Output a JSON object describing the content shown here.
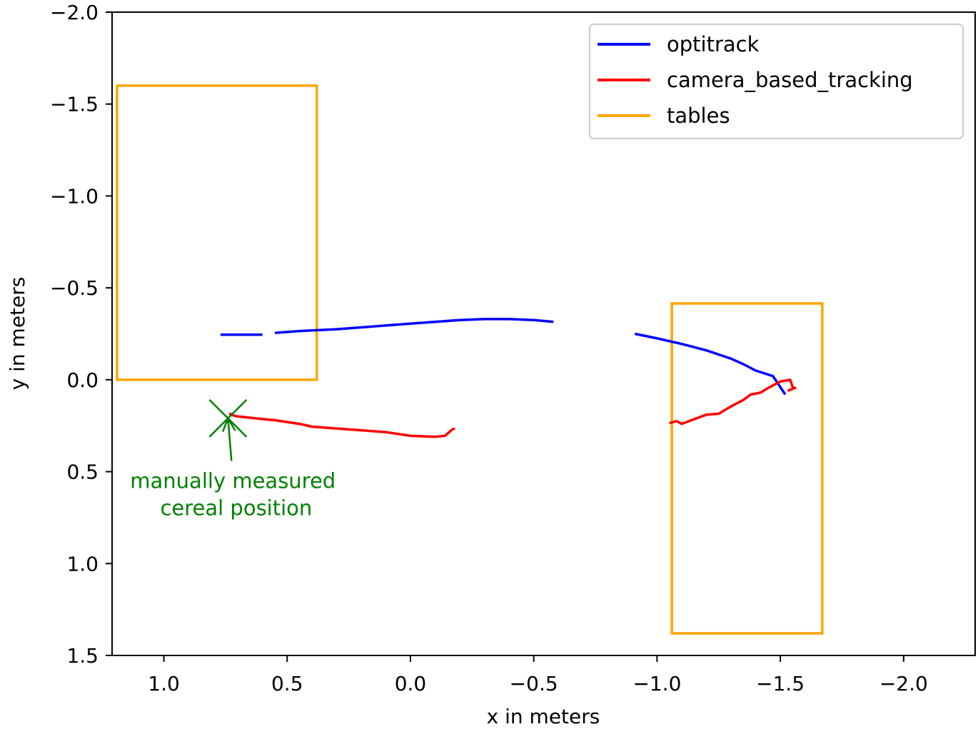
{
  "chart_data": {
    "type": "line",
    "title": "",
    "xlabel": "x in meters",
    "ylabel": "y in meters",
    "xlim": [
      1.21,
      -2.29
    ],
    "ylim": [
      1.5,
      -2.0
    ],
    "x_ticks": [
      {
        "value": 1.0,
        "label": "1.0"
      },
      {
        "value": 0.5,
        "label": "0.5"
      },
      {
        "value": 0.0,
        "label": "0.0"
      },
      {
        "value": -0.5,
        "label": "−0.5"
      },
      {
        "value": -1.0,
        "label": "−1.0"
      },
      {
        "value": -1.5,
        "label": "−1.5"
      },
      {
        "value": -2.0,
        "label": "−2.0"
      }
    ],
    "y_ticks": [
      {
        "value": -2.0,
        "label": "−2.0"
      },
      {
        "value": -1.5,
        "label": "−1.5"
      },
      {
        "value": -1.0,
        "label": "−1.0"
      },
      {
        "value": -0.5,
        "label": "−0.5"
      },
      {
        "value": 0.0,
        "label": "0.0"
      },
      {
        "value": 0.5,
        "label": "0.5"
      },
      {
        "value": 1.0,
        "label": "1.0"
      },
      {
        "value": 1.5,
        "label": "1.5"
      }
    ],
    "legend_position": "top-right",
    "series": [
      {
        "name": "optitrack",
        "color": "#0000ff",
        "segments": [
          [
            [
              0.77,
              -0.245
            ],
            [
              0.72,
              -0.245
            ],
            [
              0.6,
              -0.245
            ]
          ],
          [
            [
              0.55,
              -0.255
            ],
            [
              0.45,
              -0.265
            ],
            [
              0.3,
              -0.275
            ],
            [
              0.2,
              -0.285
            ],
            [
              0.1,
              -0.295
            ],
            [
              0.0,
              -0.305
            ],
            [
              -0.1,
              -0.315
            ],
            [
              -0.2,
              -0.325
            ],
            [
              -0.3,
              -0.33
            ],
            [
              -0.4,
              -0.33
            ],
            [
              -0.5,
              -0.325
            ],
            [
              -0.58,
              -0.315
            ]
          ],
          [
            [
              -0.91,
              -0.25
            ],
            [
              -1.0,
              -0.225
            ],
            [
              -1.1,
              -0.195
            ],
            [
              -1.2,
              -0.16
            ],
            [
              -1.3,
              -0.115
            ],
            [
              -1.35,
              -0.085
            ],
            [
              -1.4,
              -0.05
            ],
            [
              -1.47,
              -0.02
            ],
            [
              -1.52,
              0.08
            ]
          ]
        ]
      },
      {
        "name": "camera_based_tracking",
        "color": "#ff0000",
        "segments": [
          [
            [
              0.73,
              0.18
            ],
            [
              0.73,
              0.19
            ],
            [
              0.7,
              0.2
            ],
            [
              0.66,
              0.205
            ],
            [
              0.63,
              0.21
            ],
            [
              0.59,
              0.215
            ],
            [
              0.55,
              0.22
            ],
            [
              0.5,
              0.23
            ],
            [
              0.45,
              0.24
            ],
            [
              0.4,
              0.255
            ],
            [
              0.3,
              0.265
            ],
            [
              0.2,
              0.275
            ],
            [
              0.1,
              0.285
            ],
            [
              0.0,
              0.305
            ],
            [
              -0.1,
              0.31
            ],
            [
              -0.14,
              0.305
            ],
            [
              -0.17,
              0.27
            ],
            [
              -0.18,
              0.265
            ]
          ],
          [
            [
              -1.05,
              0.235
            ],
            [
              -1.08,
              0.225
            ],
            [
              -1.1,
              0.24
            ],
            [
              -1.15,
              0.215
            ],
            [
              -1.2,
              0.19
            ],
            [
              -1.25,
              0.185
            ],
            [
              -1.3,
              0.145
            ],
            [
              -1.35,
              0.11
            ],
            [
              -1.38,
              0.08
            ],
            [
              -1.42,
              0.07
            ],
            [
              -1.45,
              0.045
            ],
            [
              -1.5,
              0.01
            ],
            [
              -1.54,
              0.0
            ],
            [
              -1.55,
              0.04
            ],
            [
              -1.56,
              0.045
            ],
            [
              -1.53,
              0.06
            ]
          ]
        ]
      }
    ],
    "tables": {
      "name": "tables",
      "color": "#ffa500",
      "rectangles": [
        {
          "x0": 1.19,
          "x1": 0.38,
          "y0": -1.6,
          "y1": 0.0
        },
        {
          "x0": -1.06,
          "x1": -1.67,
          "y0": -0.415,
          "y1": 1.38
        }
      ]
    },
    "legend": [
      {
        "label": "optitrack",
        "color": "#0000ff"
      },
      {
        "label": "camera_based_tracking",
        "color": "#ff0000"
      },
      {
        "label": "tables",
        "color": "#ffa500"
      }
    ],
    "marker": {
      "x": 0.74,
      "y": 0.21,
      "symbol": "x",
      "color": "#008000"
    },
    "annotation": {
      "lines": [
        "manually measured",
        " cereal position"
      ],
      "color": "#008000",
      "text_x": 0.72,
      "text_y": 0.55,
      "arrow_to_x": 0.74,
      "arrow_to_y": 0.21
    }
  }
}
